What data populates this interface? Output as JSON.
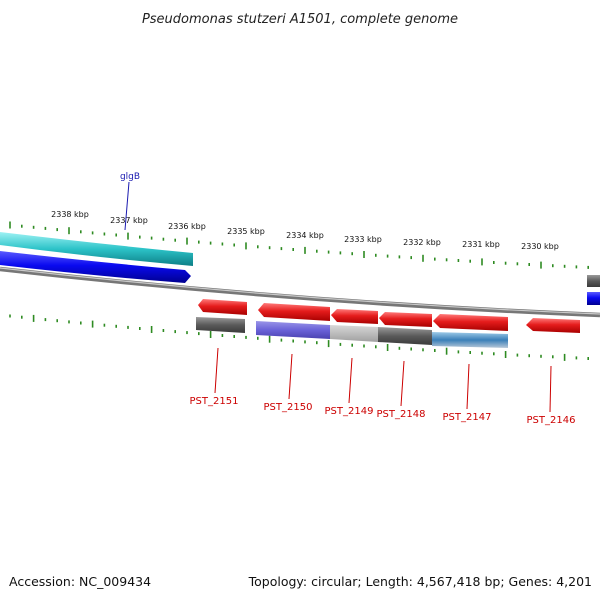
{
  "title": "Pseudomonas stutzeri A1501, complete genome",
  "footer": {
    "accession": "Accession: NC_009434",
    "summary": "Topology: circular; Length: 4,567,418 bp; Genes: 4,201"
  },
  "colors": {
    "tick_green": "#2e8b22",
    "backbone_gray": "#8a8a8a",
    "gene_red": "#e02020",
    "gene_red_light": "#ff6a6a",
    "gene_blue": "#1010ee",
    "gene_cyan": "#2cc3c8",
    "label_red": "#cc0000",
    "label_blue": "#1a1ab0"
  },
  "scale_labels": [
    "2338 kbp",
    "2337 kbp",
    "2336 kbp",
    "2335 kbp",
    "2334 kbp",
    "2333 kbp",
    "2332 kbp",
    "2331 kbp",
    "2330 kbp"
  ],
  "gene_labels": {
    "glgB": "glgB",
    "PST_2151": "PST_2151",
    "PST_2150": "PST_2150",
    "PST_2149": "PST_2149",
    "PST_2148": "PST_2148",
    "PST_2147": "PST_2147",
    "PST_2146": "PST_2146"
  }
}
